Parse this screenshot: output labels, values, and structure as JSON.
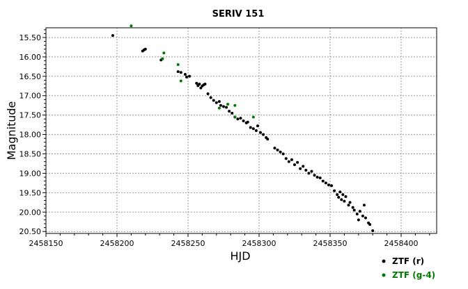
{
  "chart_data": {
    "type": "scatter",
    "title": "SERIV 151",
    "xlabel": "HJD",
    "ylabel": "Magnitude",
    "xlim": [
      2458150,
      2458425
    ],
    "ylim": [
      15.25,
      20.55
    ],
    "y_inverted": true,
    "grid": true,
    "legend": "bottom-right",
    "xticks": [
      2458150,
      2458200,
      2458250,
      2458300,
      2458350,
      2458400
    ],
    "xtick_labels": [
      "2458150",
      "2458200",
      "2458250",
      "2458300",
      "2458350",
      "2458400"
    ],
    "yticks": [
      15.5,
      16.0,
      16.5,
      17.0,
      17.5,
      18.0,
      18.5,
      19.0,
      19.5,
      20.0,
      20.5
    ],
    "ytick_labels": [
      "15.50",
      "16.00",
      "16.50",
      "17.00",
      "17.50",
      "18.00",
      "18.50",
      "19.00",
      "19.50",
      "20.00",
      "20.50"
    ],
    "series": [
      {
        "name": "ZTF (r)",
        "color": "#000000",
        "points": [
          [
            2458197,
            15.45
          ],
          [
            2458218,
            15.85
          ],
          [
            2458219,
            15.82
          ],
          [
            2458220,
            15.8
          ],
          [
            2458231,
            16.08
          ],
          [
            2458232,
            16.05
          ],
          [
            2458243,
            16.38
          ],
          [
            2458245,
            16.4
          ],
          [
            2458248,
            16.45
          ],
          [
            2458249,
            16.52
          ],
          [
            2458251,
            16.5
          ],
          [
            2458256,
            16.68
          ],
          [
            2458257,
            16.74
          ],
          [
            2458258,
            16.7
          ],
          [
            2458259,
            16.8
          ],
          [
            2458260,
            16.75
          ],
          [
            2458261,
            16.72
          ],
          [
            2458262,
            16.7
          ],
          [
            2458264,
            16.95
          ],
          [
            2458266,
            17.05
          ],
          [
            2458268,
            17.12
          ],
          [
            2458270,
            17.18
          ],
          [
            2458272,
            17.15
          ],
          [
            2458273,
            17.25
          ],
          [
            2458275,
            17.28
          ],
          [
            2458277,
            17.3
          ],
          [
            2458279,
            17.4
          ],
          [
            2458281,
            17.45
          ],
          [
            2458283,
            17.55
          ],
          [
            2458285,
            17.6
          ],
          [
            2458287,
            17.58
          ],
          [
            2458289,
            17.65
          ],
          [
            2458291,
            17.7
          ],
          [
            2458292,
            17.68
          ],
          [
            2458294,
            17.82
          ],
          [
            2458296,
            17.85
          ],
          [
            2458298,
            17.9
          ],
          [
            2458299,
            17.78
          ],
          [
            2458301,
            17.95
          ],
          [
            2458303,
            18.0
          ],
          [
            2458305,
            18.08
          ],
          [
            2458306,
            18.12
          ],
          [
            2458311,
            18.35
          ],
          [
            2458313,
            18.4
          ],
          [
            2458315,
            18.45
          ],
          [
            2458317,
            18.5
          ],
          [
            2458319,
            18.62
          ],
          [
            2458321,
            18.7
          ],
          [
            2458323,
            18.65
          ],
          [
            2458325,
            18.78
          ],
          [
            2458327,
            18.72
          ],
          [
            2458329,
            18.88
          ],
          [
            2458331,
            18.82
          ],
          [
            2458333,
            18.92
          ],
          [
            2458335,
            19.0
          ],
          [
            2458337,
            18.95
          ],
          [
            2458339,
            19.05
          ],
          [
            2458341,
            19.1
          ],
          [
            2458343,
            19.12
          ],
          [
            2458345,
            19.2
          ],
          [
            2458347,
            19.25
          ],
          [
            2458349,
            19.3
          ],
          [
            2458351,
            19.32
          ],
          [
            2458353,
            19.45
          ],
          [
            2458355,
            19.55
          ],
          [
            2458356,
            19.62
          ],
          [
            2458357,
            19.48
          ],
          [
            2458358,
            19.68
          ],
          [
            2458359,
            19.55
          ],
          [
            2458360,
            19.72
          ],
          [
            2458361,
            19.6
          ],
          [
            2458363,
            19.82
          ],
          [
            2458364,
            19.75
          ],
          [
            2458366,
            19.88
          ],
          [
            2458367,
            19.95
          ],
          [
            2458369,
            20.05
          ],
          [
            2458370,
            20.2
          ],
          [
            2458371,
            19.98
          ],
          [
            2458373,
            20.1
          ],
          [
            2458374,
            19.82
          ],
          [
            2458375,
            20.15
          ],
          [
            2458377,
            20.28
          ],
          [
            2458378,
            20.32
          ],
          [
            2458380,
            20.48
          ]
        ]
      },
      {
        "name": "ZTF (g-4)",
        "color": "#007a00",
        "points": [
          [
            2458210,
            15.2
          ],
          [
            2458232,
            16.05
          ],
          [
            2458233,
            15.9
          ],
          [
            2458243,
            16.2
          ],
          [
            2458245,
            16.62
          ],
          [
            2458272,
            17.32
          ],
          [
            2458278,
            17.22
          ],
          [
            2458283,
            17.25
          ],
          [
            2458283,
            17.55
          ],
          [
            2458296,
            17.55
          ]
        ]
      }
    ]
  }
}
